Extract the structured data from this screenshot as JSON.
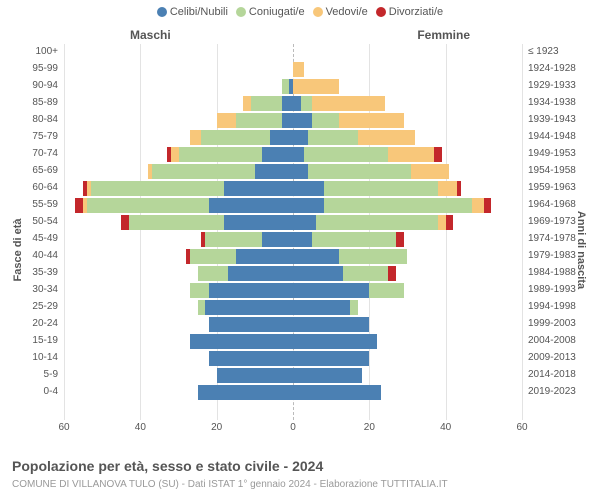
{
  "chart": {
    "type": "population-pyramid",
    "title": "Popolazione per età, sesso e stato civile - 2024",
    "subtitle": "COMUNE DI VILLANOVA TULO (SU) - Dati ISTAT 1° gennaio 2024 - Elaborazione TUTTITALIA.IT",
    "male_label": "Maschi",
    "female_label": "Femmine",
    "y_title_left": "Fasce di età",
    "y_title_right": "Anni di nascita",
    "x_max": 60,
    "x_ticks": [
      60,
      40,
      20,
      0,
      20,
      40,
      60
    ],
    "background_color": "#ffffff",
    "grid_color": "#e3e3e3",
    "text_color": "#555555",
    "title_fontsize": 14,
    "label_fontsize": 10,
    "legend": [
      {
        "label": "Celibi/Nubili",
        "color": "#4b80b3"
      },
      {
        "label": "Coniugati/e",
        "color": "#b5d69a"
      },
      {
        "label": "Vedovi/e",
        "color": "#f8c77a"
      },
      {
        "label": "Divorziati/e",
        "color": "#c3272b"
      }
    ],
    "age_groups": [
      {
        "age": "100+",
        "birth": "≤ 1923",
        "m": {
          "cel": 0,
          "con": 0,
          "ved": 0,
          "div": 0
        },
        "f": {
          "cel": 0,
          "con": 0,
          "ved": 0,
          "div": 0
        }
      },
      {
        "age": "95-99",
        "birth": "1924-1928",
        "m": {
          "cel": 0,
          "con": 0,
          "ved": 0,
          "div": 0
        },
        "f": {
          "cel": 0,
          "con": 0,
          "ved": 3,
          "div": 0
        }
      },
      {
        "age": "90-94",
        "birth": "1929-1933",
        "m": {
          "cel": 1,
          "con": 2,
          "ved": 0,
          "div": 0
        },
        "f": {
          "cel": 0,
          "con": 0,
          "ved": 12,
          "div": 0
        }
      },
      {
        "age": "85-89",
        "birth": "1934-1938",
        "m": {
          "cel": 3,
          "con": 8,
          "ved": 2,
          "div": 0
        },
        "f": {
          "cel": 2,
          "con": 3,
          "ved": 19,
          "div": 0
        }
      },
      {
        "age": "80-84",
        "birth": "1939-1943",
        "m": {
          "cel": 3,
          "con": 12,
          "ved": 5,
          "div": 0
        },
        "f": {
          "cel": 5,
          "con": 7,
          "ved": 17,
          "div": 0
        }
      },
      {
        "age": "75-79",
        "birth": "1944-1948",
        "m": {
          "cel": 6,
          "con": 18,
          "ved": 3,
          "div": 0
        },
        "f": {
          "cel": 4,
          "con": 13,
          "ved": 15,
          "div": 0
        }
      },
      {
        "age": "70-74",
        "birth": "1949-1953",
        "m": {
          "cel": 8,
          "con": 22,
          "ved": 2,
          "div": 1
        },
        "f": {
          "cel": 3,
          "con": 22,
          "ved": 12,
          "div": 2
        }
      },
      {
        "age": "65-69",
        "birth": "1954-1958",
        "m": {
          "cel": 10,
          "con": 27,
          "ved": 1,
          "div": 0
        },
        "f": {
          "cel": 4,
          "con": 27,
          "ved": 10,
          "div": 0
        }
      },
      {
        "age": "60-64",
        "birth": "1959-1963",
        "m": {
          "cel": 18,
          "con": 35,
          "ved": 1,
          "div": 1
        },
        "f": {
          "cel": 8,
          "con": 30,
          "ved": 5,
          "div": 1
        }
      },
      {
        "age": "55-59",
        "birth": "1964-1968",
        "m": {
          "cel": 22,
          "con": 32,
          "ved": 1,
          "div": 2
        },
        "f": {
          "cel": 8,
          "con": 39,
          "ved": 3,
          "div": 2
        }
      },
      {
        "age": "50-54",
        "birth": "1969-1973",
        "m": {
          "cel": 18,
          "con": 25,
          "ved": 0,
          "div": 2
        },
        "f": {
          "cel": 6,
          "con": 32,
          "ved": 2,
          "div": 2
        }
      },
      {
        "age": "45-49",
        "birth": "1974-1978",
        "m": {
          "cel": 8,
          "con": 15,
          "ved": 0,
          "div": 1
        },
        "f": {
          "cel": 5,
          "con": 22,
          "ved": 0,
          "div": 2
        }
      },
      {
        "age": "40-44",
        "birth": "1979-1983",
        "m": {
          "cel": 15,
          "con": 12,
          "ved": 0,
          "div": 1
        },
        "f": {
          "cel": 12,
          "con": 18,
          "ved": 0,
          "div": 0
        }
      },
      {
        "age": "35-39",
        "birth": "1984-1988",
        "m": {
          "cel": 17,
          "con": 8,
          "ved": 0,
          "div": 0
        },
        "f": {
          "cel": 13,
          "con": 12,
          "ved": 0,
          "div": 2
        }
      },
      {
        "age": "30-34",
        "birth": "1989-1993",
        "m": {
          "cel": 22,
          "con": 5,
          "ved": 0,
          "div": 0
        },
        "f": {
          "cel": 20,
          "con": 9,
          "ved": 0,
          "div": 0
        }
      },
      {
        "age": "25-29",
        "birth": "1994-1998",
        "m": {
          "cel": 23,
          "con": 2,
          "ved": 0,
          "div": 0
        },
        "f": {
          "cel": 15,
          "con": 2,
          "ved": 0,
          "div": 0
        }
      },
      {
        "age": "20-24",
        "birth": "1999-2003",
        "m": {
          "cel": 22,
          "con": 0,
          "ved": 0,
          "div": 0
        },
        "f": {
          "cel": 20,
          "con": 0,
          "ved": 0,
          "div": 0
        }
      },
      {
        "age": "15-19",
        "birth": "2004-2008",
        "m": {
          "cel": 27,
          "con": 0,
          "ved": 0,
          "div": 0
        },
        "f": {
          "cel": 22,
          "con": 0,
          "ved": 0,
          "div": 0
        }
      },
      {
        "age": "10-14",
        "birth": "2009-2013",
        "m": {
          "cel": 22,
          "con": 0,
          "ved": 0,
          "div": 0
        },
        "f": {
          "cel": 20,
          "con": 0,
          "ved": 0,
          "div": 0
        }
      },
      {
        "age": "5-9",
        "birth": "2014-2018",
        "m": {
          "cel": 20,
          "con": 0,
          "ved": 0,
          "div": 0
        },
        "f": {
          "cel": 18,
          "con": 0,
          "ved": 0,
          "div": 0
        }
      },
      {
        "age": "0-4",
        "birth": "2019-2023",
        "m": {
          "cel": 25,
          "con": 0,
          "ved": 0,
          "div": 0
        },
        "f": {
          "cel": 23,
          "con": 0,
          "ved": 0,
          "div": 0
        }
      }
    ]
  }
}
